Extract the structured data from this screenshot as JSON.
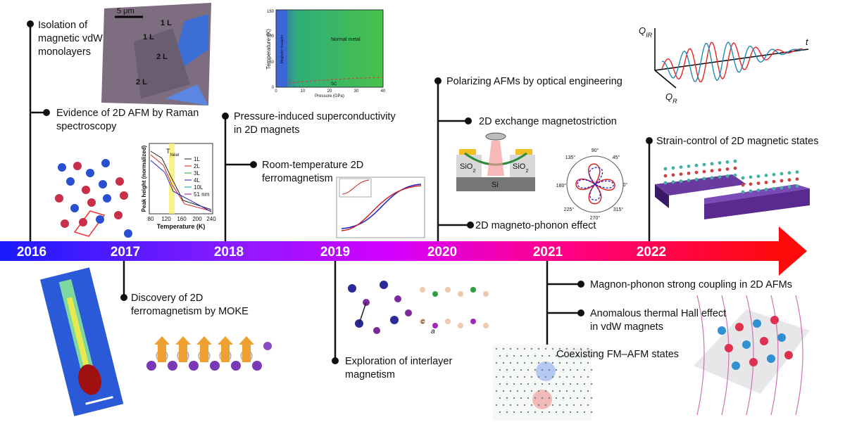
{
  "timeline": {
    "years": [
      "2016",
      "2017",
      "2018",
      "2019",
      "2020",
      "2021",
      "2022"
    ]
  },
  "events": [
    {
      "lines": [
        "Isolation of",
        "magnetic vdW",
        "monolayers"
      ]
    },
    {
      "lines": [
        "Evidence of 2D AFM by Raman",
        "spectroscopy"
      ]
    },
    {
      "lines": [
        "Discovery of 2D",
        "ferromagnetism by MOKE"
      ]
    },
    {
      "lines": [
        "Pressure-induced superconductivity",
        "in 2D magnets"
      ]
    },
    {
      "lines": [
        "Room-temperature 2D",
        "ferromagnetism"
      ]
    },
    {
      "lines": [
        "Exploration of interlayer",
        "magnetism"
      ]
    },
    {
      "lines": [
        "Polarizing AFMs by optical engineering"
      ]
    },
    {
      "lines": [
        "2D exchange magnetostriction"
      ]
    },
    {
      "lines": [
        "2D magneto-phonon effect"
      ]
    },
    {
      "lines": [
        "Coexisting FM–AFM states"
      ]
    },
    {
      "lines": [
        "Magnon-phonon strong coupling in 2D AFMs"
      ]
    },
    {
      "lines": [
        "Anomalous thermal Hall effect",
        "in vdW magnets"
      ]
    },
    {
      "lines": [
        "Strain-control of 2D magnetic states"
      ]
    }
  ],
  "insets": {
    "flake": {
      "scale_bar": "5 μm",
      "layer_labels": [
        "1 L",
        "1 L",
        "2 L",
        "2 L"
      ]
    },
    "pressure": {
      "y_label": "Temperature (K)",
      "x_label": "Pressure (GPa)",
      "yticks": [
        "0",
        "50",
        "100",
        "150"
      ],
      "xticks": [
        "0",
        "10",
        "20",
        "30",
        "40"
      ],
      "regions": [
        "Magnetic insulator",
        "Normal metal",
        "SC"
      ]
    },
    "raman": {
      "y_label": "Peak height (normalized)",
      "x_label": "Temperature (K)",
      "xticks": [
        "80",
        "120",
        "160",
        "200",
        "240"
      ],
      "marker": {
        "main": "T",
        "sub": "Néel"
      },
      "legend": [
        "1L",
        "2L",
        "3L",
        "4L",
        "10L",
        "51 nm"
      ]
    },
    "device": {
      "substrate_labels": [
        {
          "main": "SiO",
          "sub": "2"
        },
        {
          "main": "SiO",
          "sub": "2"
        }
      ],
      "base_label": "Si"
    },
    "polar": {
      "angles": [
        "90°",
        "45°",
        "0°",
        "315°",
        "270°",
        "225°",
        "180°",
        "135°"
      ]
    },
    "pulse": {
      "axes": [
        {
          "main": "Q",
          "sub": "IR"
        },
        {
          "main": "Q",
          "sub": "R"
        }
      ],
      "time": "t"
    },
    "crystal": {
      "axes": [
        "c",
        "a"
      ]
    }
  }
}
